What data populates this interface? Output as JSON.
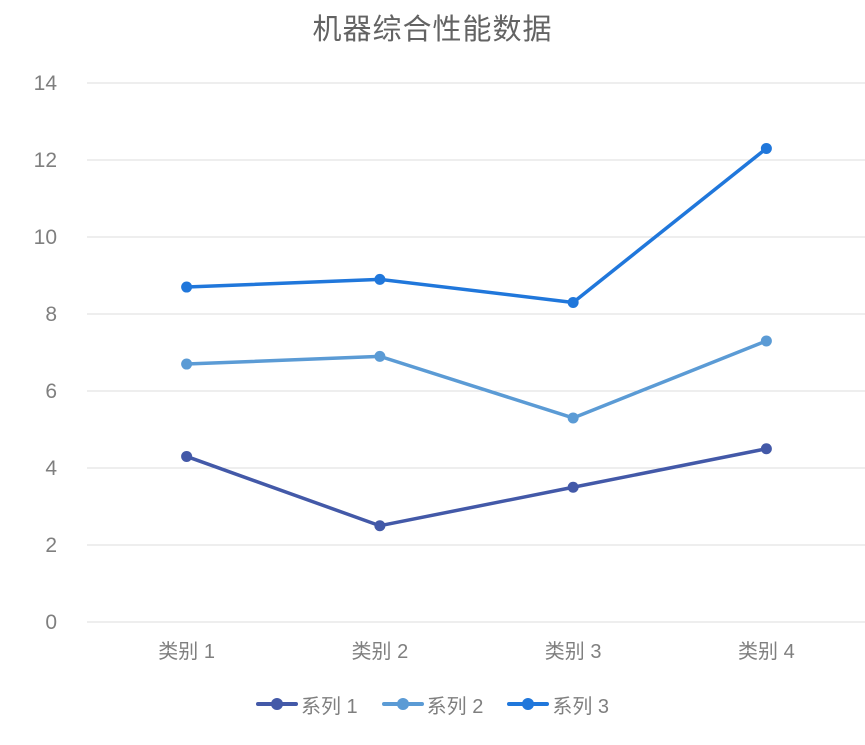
{
  "chart_data": {
    "type": "line",
    "title": "机器综合性能数据",
    "categories": [
      "类别 1",
      "类别 2",
      "类别 3",
      "类别 4"
    ],
    "series": [
      {
        "name": "系列 1",
        "color": "#4359A8",
        "values": [
          4.3,
          2.5,
          3.5,
          4.5
        ]
      },
      {
        "name": "系列 2",
        "color": "#5B9BD5",
        "values": [
          6.7,
          6.9,
          5.3,
          7.3
        ]
      },
      {
        "name": "系列 3",
        "color": "#2077DB",
        "values": [
          8.7,
          8.9,
          8.3,
          12.3
        ]
      }
    ],
    "ylim": [
      0,
      14
    ],
    "ytick_step": 2,
    "ytick_labels": [
      "0",
      "2",
      "4",
      "6",
      "8",
      "10",
      "12",
      "14"
    ],
    "grid": true,
    "legend_position": "bottom",
    "colors": {
      "grid": "#dddddd",
      "axis_text": "#7f7f7f",
      "title_text": "#636363",
      "background": "#ffffff"
    }
  }
}
